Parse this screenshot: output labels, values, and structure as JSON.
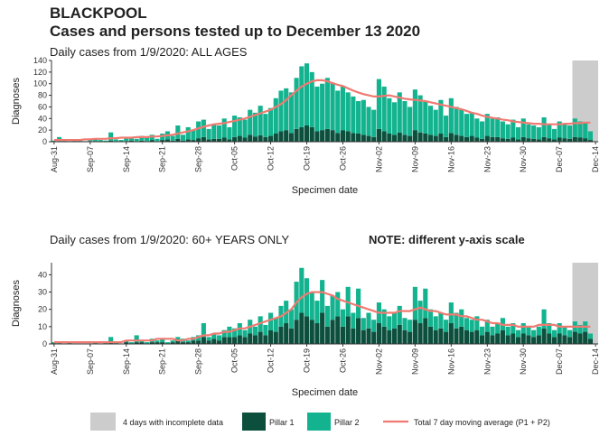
{
  "title": "BLACKPOOL",
  "subtitle": "Cases and persons tested up to December 13 2020",
  "incomplete": {
    "label": "4 days with incomplete data",
    "days": 4,
    "color": "#cccccc"
  },
  "chart_data": [
    {
      "type": "bar",
      "stacked": true,
      "title": "Daily cases from 1/9/2020: ALL AGES",
      "xlabel": "Specimen date",
      "ylabel": "Diagnoses",
      "ylim": [
        0,
        140
      ],
      "yticks": [
        0,
        20,
        40,
        60,
        80,
        100,
        120,
        140
      ],
      "categories": [
        "Aug-31",
        null,
        null,
        null,
        null,
        null,
        null,
        "Sep-07",
        null,
        null,
        null,
        null,
        null,
        null,
        "Sep-14",
        null,
        null,
        null,
        null,
        null,
        null,
        "Sep-21",
        null,
        null,
        null,
        null,
        null,
        null,
        "Sep-28",
        null,
        null,
        null,
        null,
        null,
        null,
        "Oct-05",
        null,
        null,
        null,
        null,
        null,
        null,
        "Oct-12",
        null,
        null,
        null,
        null,
        null,
        null,
        "Oct-19",
        null,
        null,
        null,
        null,
        null,
        null,
        "Oct-26",
        null,
        null,
        null,
        null,
        null,
        null,
        "Nov-02",
        null,
        null,
        null,
        null,
        null,
        null,
        "Nov-09",
        null,
        null,
        null,
        null,
        null,
        null,
        "Nov-16",
        null,
        null,
        null,
        null,
        null,
        null,
        "Nov-23",
        null,
        null,
        null,
        null,
        null,
        null,
        "Nov-30",
        null,
        null,
        null,
        null,
        null,
        null,
        "Dec-07",
        null,
        null,
        null,
        null,
        null,
        null,
        "Dec-14"
      ],
      "series": [
        {
          "name": "Pillar 1",
          "type": "bar",
          "color": "#0b4f3c",
          "values": [
            0,
            1,
            0,
            0,
            0,
            1,
            0,
            1,
            1,
            0,
            0,
            2,
            1,
            0,
            1,
            2,
            1,
            2,
            1,
            3,
            1,
            3,
            4,
            2,
            5,
            2,
            4,
            3,
            6,
            8,
            4,
            5,
            5,
            7,
            4,
            8,
            10,
            7,
            12,
            9,
            11,
            8,
            10,
            14,
            18,
            20,
            15,
            22,
            25,
            28,
            25,
            18,
            20,
            22,
            20,
            15,
            20,
            18,
            15,
            14,
            12,
            10,
            8,
            22,
            18,
            14,
            12,
            16,
            12,
            10,
            20,
            16,
            14,
            12,
            10,
            14,
            8,
            15,
            12,
            10,
            8,
            10,
            7,
            5,
            10,
            8,
            8,
            6,
            5,
            7,
            4,
            8,
            6,
            5,
            4,
            8,
            6,
            4,
            7,
            6,
            5,
            8,
            7,
            6,
            3,
            null
          ]
        },
        {
          "name": "Pillar 2",
          "type": "bar",
          "color": "#13b38f",
          "values": [
            2,
            7,
            3,
            1,
            2,
            2,
            1,
            3,
            4,
            3,
            2,
            14,
            3,
            3,
            5,
            6,
            4,
            8,
            6,
            9,
            4,
            11,
            14,
            8,
            23,
            10,
            21,
            17,
            29,
            30,
            18,
            25,
            23,
            33,
            21,
            37,
            32,
            31,
            43,
            41,
            51,
            40,
            48,
            61,
            70,
            72,
            70,
            88,
            105,
            107,
            95,
            77,
            80,
            88,
            82,
            73,
            75,
            67,
            63,
            56,
            60,
            50,
            47,
            86,
            77,
            61,
            56,
            69,
            58,
            50,
            70,
            64,
            56,
            50,
            45,
            58,
            37,
            60,
            48,
            45,
            40,
            40,
            33,
            30,
            38,
            32,
            34,
            29,
            25,
            31,
            21,
            32,
            24,
            23,
            21,
            34,
            24,
            18,
            28,
            24,
            23,
            32,
            28,
            26,
            15,
            null
          ]
        },
        {
          "name": "Total 7 day moving average (P1 + P2)",
          "type": "line",
          "color": "#f07a72",
          "values": [
            3,
            3,
            3,
            3,
            3,
            3,
            4,
            4,
            5,
            5,
            5,
            6,
            6,
            7,
            7,
            7,
            8,
            8,
            8,
            9,
            9,
            10,
            11,
            12,
            14,
            16,
            18,
            20,
            23,
            26,
            28,
            30,
            31,
            32,
            34,
            36,
            38,
            40,
            43,
            46,
            49,
            52,
            55,
            60,
            65,
            72,
            80,
            88,
            95,
            100,
            104,
            106,
            106,
            104,
            101,
            98,
            96,
            92,
            88,
            85,
            82,
            80,
            78,
            78,
            79,
            80,
            78,
            76,
            74,
            73,
            72,
            71,
            70,
            68,
            66,
            64,
            62,
            60,
            58,
            56,
            53,
            50,
            48,
            45,
            43,
            41,
            40,
            38,
            37,
            35,
            34,
            33,
            32,
            31,
            31,
            30,
            30,
            30,
            30,
            31,
            31,
            32,
            32,
            33,
            33,
            null
          ]
        }
      ]
    },
    {
      "type": "bar",
      "stacked": true,
      "title": "Daily cases from 1/9/2020: 60+ YEARS ONLY",
      "note": "NOTE: different y-axis scale",
      "xlabel": "Specimen date",
      "ylabel": "Diagnoses",
      "ylim": [
        0,
        47
      ],
      "yticks": [
        0,
        10,
        20,
        30,
        40
      ],
      "categories": [
        "Aug-31",
        null,
        null,
        null,
        null,
        null,
        null,
        "Sep-07",
        null,
        null,
        null,
        null,
        null,
        null,
        "Sep-14",
        null,
        null,
        null,
        null,
        null,
        null,
        "Sep-21",
        null,
        null,
        null,
        null,
        null,
        null,
        "Sep-28",
        null,
        null,
        null,
        null,
        null,
        null,
        "Oct-05",
        null,
        null,
        null,
        null,
        null,
        null,
        "Oct-12",
        null,
        null,
        null,
        null,
        null,
        null,
        "Oct-19",
        null,
        null,
        null,
        null,
        null,
        null,
        "Oct-26",
        null,
        null,
        null,
        null,
        null,
        null,
        "Nov-02",
        null,
        null,
        null,
        null,
        null,
        null,
        "Nov-09",
        null,
        null,
        null,
        null,
        null,
        null,
        "Nov-16",
        null,
        null,
        null,
        null,
        null,
        null,
        "Nov-23",
        null,
        null,
        null,
        null,
        null,
        null,
        "Nov-30",
        null,
        null,
        null,
        null,
        null,
        null,
        "Dec-07",
        null,
        null,
        null,
        null,
        null,
        null,
        "Dec-14"
      ],
      "series": [
        {
          "name": "Pillar 1",
          "type": "bar",
          "color": "#0b4f3c",
          "values": [
            0,
            0,
            0,
            0,
            0,
            0,
            0,
            0,
            0,
            0,
            0,
            1,
            0,
            0,
            1,
            0,
            1,
            1,
            0,
            1,
            1,
            1,
            0,
            1,
            2,
            1,
            1,
            2,
            2,
            4,
            2,
            3,
            2,
            4,
            4,
            4,
            5,
            4,
            6,
            5,
            7,
            5,
            8,
            7,
            10,
            12,
            9,
            14,
            18,
            16,
            14,
            12,
            18,
            10,
            14,
            16,
            10,
            16,
            9,
            15,
            8,
            9,
            7,
            12,
            10,
            8,
            9,
            11,
            8,
            7,
            14,
            12,
            15,
            10,
            8,
            9,
            7,
            12,
            9,
            10,
            8,
            7,
            8,
            5,
            7,
            5,
            6,
            8,
            5,
            6,
            4,
            6,
            5,
            4,
            5,
            9,
            6,
            4,
            6,
            5,
            4,
            7,
            6,
            7,
            3,
            null
          ]
        },
        {
          "name": "Pillar 2",
          "type": "bar",
          "color": "#13b38f",
          "values": [
            1,
            1,
            0,
            1,
            0,
            0,
            0,
            0,
            1,
            0,
            1,
            3,
            1,
            0,
            1,
            1,
            4,
            1,
            1,
            2,
            1,
            2,
            1,
            1,
            2,
            2,
            1,
            2,
            3,
            8,
            2,
            3,
            3,
            4,
            6,
            5,
            7,
            4,
            8,
            5,
            9,
            6,
            10,
            8,
            12,
            13,
            11,
            22,
            26,
            22,
            16,
            13,
            19,
            12,
            14,
            14,
            10,
            17,
            9,
            17,
            7,
            9,
            7,
            12,
            10,
            8,
            9,
            11,
            7,
            7,
            19,
            13,
            17,
            10,
            8,
            9,
            7,
            12,
            9,
            10,
            7,
            7,
            8,
            5,
            7,
            5,
            6,
            7,
            5,
            6,
            4,
            6,
            5,
            4,
            5,
            11,
            6,
            4,
            6,
            5,
            4,
            6,
            5,
            6,
            3,
            null
          ]
        },
        {
          "name": "Total 7 day moving average (P1 + P2)",
          "type": "line",
          "color": "#f07a72",
          "values": [
            1,
            1,
            1,
            1,
            1,
            1,
            1,
            1,
            1,
            1,
            1,
            1,
            1,
            1,
            2,
            2,
            2,
            2,
            2,
            2,
            3,
            3,
            3,
            3,
            2,
            2,
            3,
            3,
            4,
            5,
            5,
            6,
            6,
            7,
            7,
            8,
            9,
            9,
            10,
            11,
            12,
            13,
            14,
            15,
            16,
            18,
            20,
            24,
            27,
            29,
            30,
            30,
            30,
            29,
            28,
            26,
            25,
            24,
            23,
            22,
            21,
            20,
            19,
            18,
            18,
            18,
            18,
            19,
            19,
            19,
            20,
            21,
            20,
            19,
            19,
            18,
            17,
            17,
            17,
            16,
            16,
            15,
            14,
            14,
            13,
            12,
            12,
            11,
            11,
            11,
            10,
            10,
            10,
            10,
            11,
            11,
            11,
            11,
            10,
            10,
            10,
            10,
            10,
            10,
            10,
            null
          ]
        }
      ]
    }
  ]
}
